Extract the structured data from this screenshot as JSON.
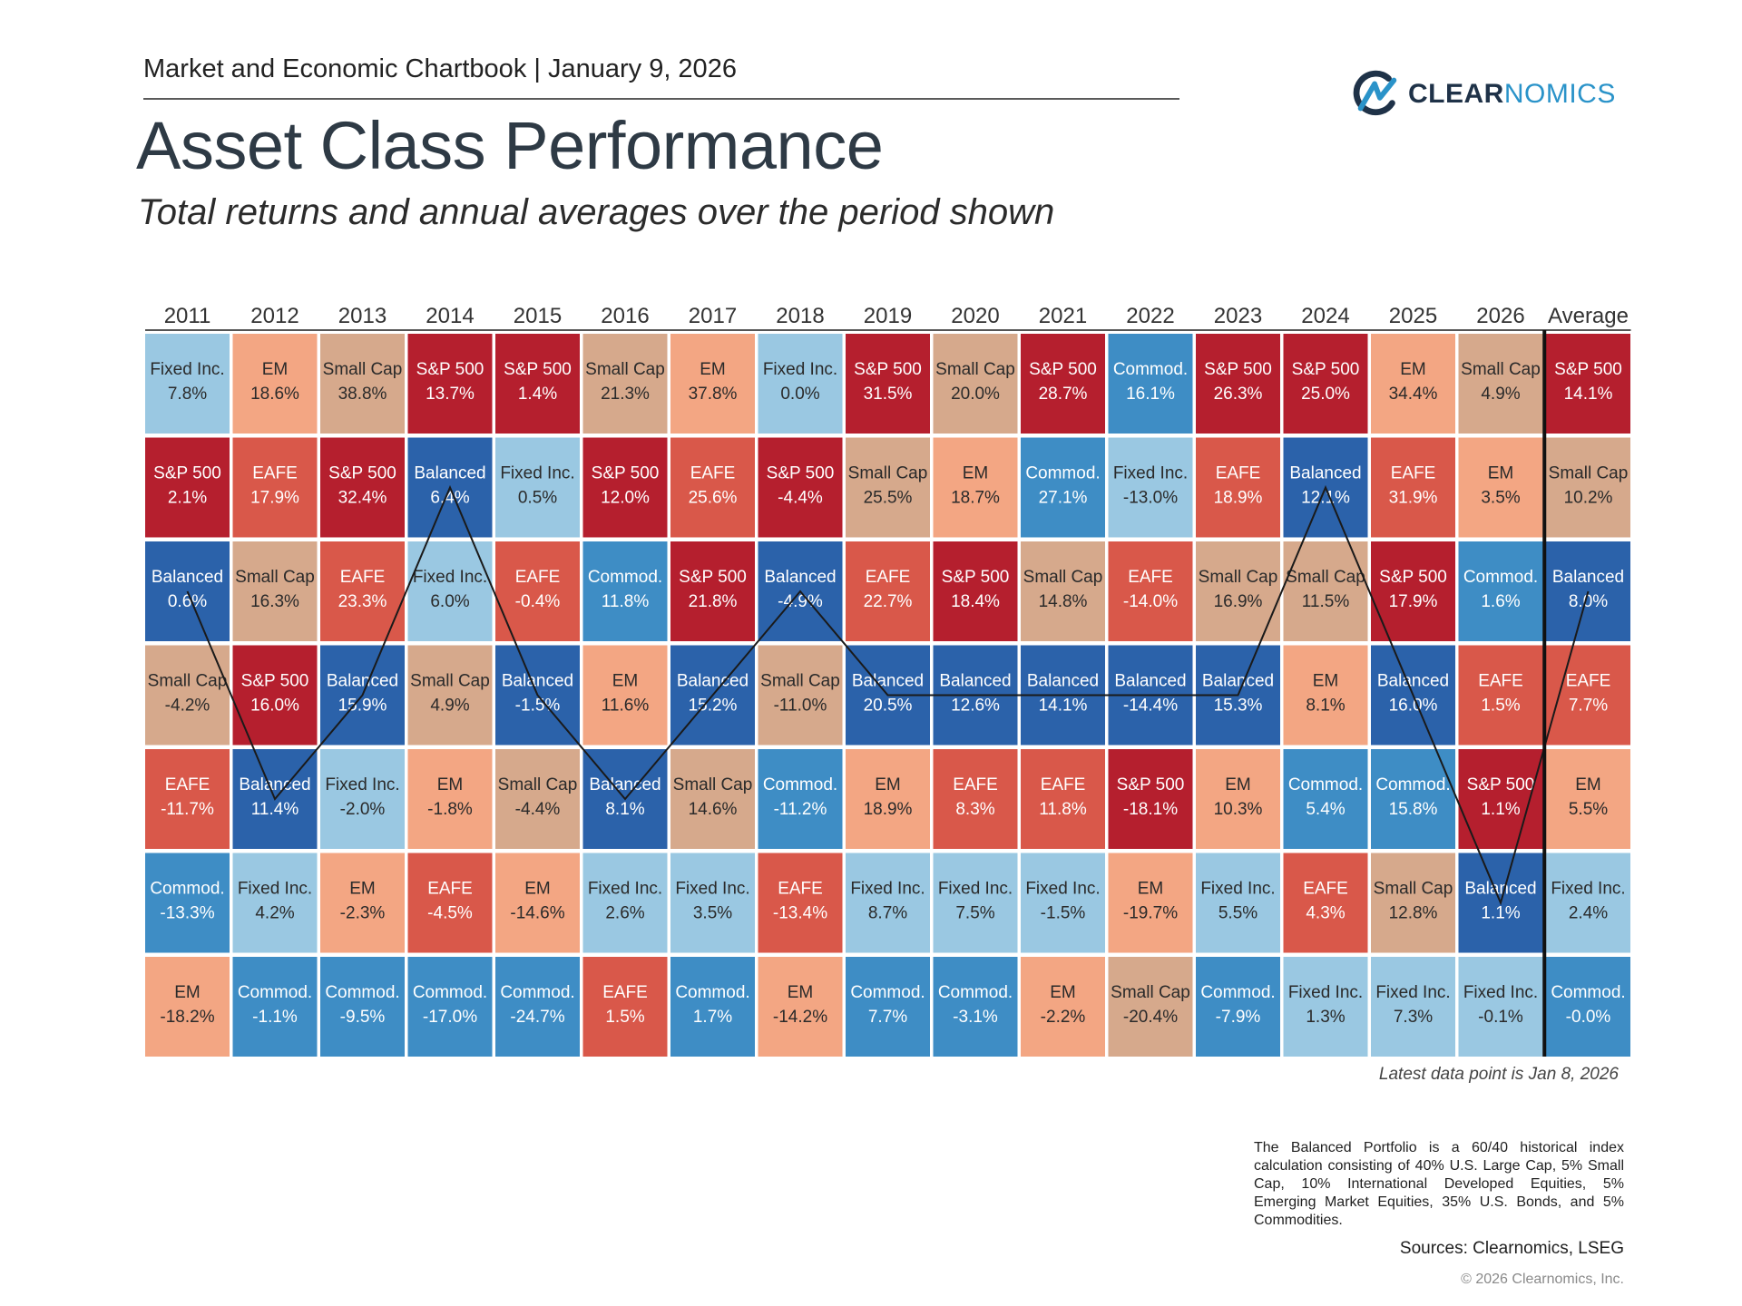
{
  "header": {
    "kicker": "Market and Economic Chartbook | January 9, 2026",
    "title": "Asset Class Performance",
    "subtitle": "Total returns and annual averages over the period shown"
  },
  "logo": {
    "text_bold": "CLEAR",
    "text_light": "NOMICS"
  },
  "legend_colors": {
    "S&P 500": "#b51f2e",
    "EAFE": "#d9584a",
    "EM": "#f3a683",
    "Small Cap": "#d6a98c",
    "Balanced": "#2b62aa",
    "Commod.": "#3e8dc5",
    "Fixed Inc.": "#9ac8e2"
  },
  "chart_data": {
    "type": "table",
    "title": "Asset Class Performance",
    "columns": [
      {
        "year": "2011",
        "cells": [
          [
            "Fixed Inc.",
            "7.8%"
          ],
          [
            "S&P 500",
            "2.1%"
          ],
          [
            "Balanced",
            "0.6%"
          ],
          [
            "Small Cap",
            "-4.2%"
          ],
          [
            "EAFE",
            "-11.7%"
          ],
          [
            "Commod.",
            "-13.3%"
          ],
          [
            "EM",
            "-18.2%"
          ]
        ]
      },
      {
        "year": "2012",
        "cells": [
          [
            "EM",
            "18.6%"
          ],
          [
            "EAFE",
            "17.9%"
          ],
          [
            "Small Cap",
            "16.3%"
          ],
          [
            "S&P 500",
            "16.0%"
          ],
          [
            "Balanced",
            "11.4%"
          ],
          [
            "Fixed Inc.",
            "4.2%"
          ],
          [
            "Commod.",
            "-1.1%"
          ]
        ]
      },
      {
        "year": "2013",
        "cells": [
          [
            "Small Cap",
            "38.8%"
          ],
          [
            "S&P 500",
            "32.4%"
          ],
          [
            "EAFE",
            "23.3%"
          ],
          [
            "Balanced",
            "15.9%"
          ],
          [
            "Fixed Inc.",
            "-2.0%"
          ],
          [
            "EM",
            "-2.3%"
          ],
          [
            "Commod.",
            "-9.5%"
          ]
        ]
      },
      {
        "year": "2014",
        "cells": [
          [
            "S&P 500",
            "13.7%"
          ],
          [
            "Balanced",
            "6.4%"
          ],
          [
            "Fixed Inc.",
            "6.0%"
          ],
          [
            "Small Cap",
            "4.9%"
          ],
          [
            "EM",
            "-1.8%"
          ],
          [
            "EAFE",
            "-4.5%"
          ],
          [
            "Commod.",
            "-17.0%"
          ]
        ]
      },
      {
        "year": "2015",
        "cells": [
          [
            "S&P 500",
            "1.4%"
          ],
          [
            "Fixed Inc.",
            "0.5%"
          ],
          [
            "EAFE",
            "-0.4%"
          ],
          [
            "Balanced",
            "-1.5%"
          ],
          [
            "Small Cap",
            "-4.4%"
          ],
          [
            "EM",
            "-14.6%"
          ],
          [
            "Commod.",
            "-24.7%"
          ]
        ]
      },
      {
        "year": "2016",
        "cells": [
          [
            "Small Cap",
            "21.3%"
          ],
          [
            "S&P 500",
            "12.0%"
          ],
          [
            "Commod.",
            "11.8%"
          ],
          [
            "EM",
            "11.6%"
          ],
          [
            "Balanced",
            "8.1%"
          ],
          [
            "Fixed Inc.",
            "2.6%"
          ],
          [
            "EAFE",
            "1.5%"
          ]
        ]
      },
      {
        "year": "2017",
        "cells": [
          [
            "EM",
            "37.8%"
          ],
          [
            "EAFE",
            "25.6%"
          ],
          [
            "S&P 500",
            "21.8%"
          ],
          [
            "Balanced",
            "15.2%"
          ],
          [
            "Small Cap",
            "14.6%"
          ],
          [
            "Fixed Inc.",
            "3.5%"
          ],
          [
            "Commod.",
            "1.7%"
          ]
        ]
      },
      {
        "year": "2018",
        "cells": [
          [
            "Fixed Inc.",
            "0.0%"
          ],
          [
            "S&P 500",
            "-4.4%"
          ],
          [
            "Balanced",
            "-4.9%"
          ],
          [
            "Small Cap",
            "-11.0%"
          ],
          [
            "Commod.",
            "-11.2%"
          ],
          [
            "EAFE",
            "-13.4%"
          ],
          [
            "EM",
            "-14.2%"
          ]
        ]
      },
      {
        "year": "2019",
        "cells": [
          [
            "S&P 500",
            "31.5%"
          ],
          [
            "Small Cap",
            "25.5%"
          ],
          [
            "EAFE",
            "22.7%"
          ],
          [
            "Balanced",
            "20.5%"
          ],
          [
            "EM",
            "18.9%"
          ],
          [
            "Fixed Inc.",
            "8.7%"
          ],
          [
            "Commod.",
            "7.7%"
          ]
        ]
      },
      {
        "year": "2020",
        "cells": [
          [
            "Small Cap",
            "20.0%"
          ],
          [
            "EM",
            "18.7%"
          ],
          [
            "S&P 500",
            "18.4%"
          ],
          [
            "Balanced",
            "12.6%"
          ],
          [
            "EAFE",
            "8.3%"
          ],
          [
            "Fixed Inc.",
            "7.5%"
          ],
          [
            "Commod.",
            "-3.1%"
          ]
        ]
      },
      {
        "year": "2021",
        "cells": [
          [
            "S&P 500",
            "28.7%"
          ],
          [
            "Commod.",
            "27.1%"
          ],
          [
            "Small Cap",
            "14.8%"
          ],
          [
            "Balanced",
            "14.1%"
          ],
          [
            "EAFE",
            "11.8%"
          ],
          [
            "Fixed Inc.",
            "-1.5%"
          ],
          [
            "EM",
            "-2.2%"
          ]
        ]
      },
      {
        "year": "2022",
        "cells": [
          [
            "Commod.",
            "16.1%"
          ],
          [
            "Fixed Inc.",
            "-13.0%"
          ],
          [
            "EAFE",
            "-14.0%"
          ],
          [
            "Balanced",
            "-14.4%"
          ],
          [
            "S&P 500",
            "-18.1%"
          ],
          [
            "EM",
            "-19.7%"
          ],
          [
            "Small Cap",
            "-20.4%"
          ]
        ]
      },
      {
        "year": "2023",
        "cells": [
          [
            "S&P 500",
            "26.3%"
          ],
          [
            "EAFE",
            "18.9%"
          ],
          [
            "Small Cap",
            "16.9%"
          ],
          [
            "Balanced",
            "15.3%"
          ],
          [
            "EM",
            "10.3%"
          ],
          [
            "Fixed Inc.",
            "5.5%"
          ],
          [
            "Commod.",
            "-7.9%"
          ]
        ]
      },
      {
        "year": "2024",
        "cells": [
          [
            "S&P 500",
            "25.0%"
          ],
          [
            "Balanced",
            "12.1%"
          ],
          [
            "Small Cap",
            "11.5%"
          ],
          [
            "EM",
            "8.1%"
          ],
          [
            "Commod.",
            "5.4%"
          ],
          [
            "EAFE",
            "4.3%"
          ],
          [
            "Fixed Inc.",
            "1.3%"
          ]
        ]
      },
      {
        "year": "2025",
        "cells": [
          [
            "EM",
            "34.4%"
          ],
          [
            "EAFE",
            "31.9%"
          ],
          [
            "S&P 500",
            "17.9%"
          ],
          [
            "Balanced",
            "16.0%"
          ],
          [
            "Commod.",
            "15.8%"
          ],
          [
            "Small Cap",
            "12.8%"
          ],
          [
            "Fixed Inc.",
            "7.3%"
          ]
        ]
      },
      {
        "year": "2026",
        "cells": [
          [
            "Small Cap",
            "4.9%"
          ],
          [
            "EM",
            "3.5%"
          ],
          [
            "Commod.",
            "1.6%"
          ],
          [
            "EAFE",
            "1.5%"
          ],
          [
            "S&P 500",
            "1.1%"
          ],
          [
            "Balanced",
            "1.1%"
          ],
          [
            "Fixed Inc.",
            "-0.1%"
          ]
        ]
      },
      {
        "year": "Average",
        "cells": [
          [
            "S&P 500",
            "14.1%"
          ],
          [
            "Small Cap",
            "10.2%"
          ],
          [
            "Balanced",
            "8.0%"
          ],
          [
            "EAFE",
            "7.7%"
          ],
          [
            "EM",
            "5.5%"
          ],
          [
            "Fixed Inc.",
            "2.4%"
          ],
          [
            "Commod.",
            "-0.0%"
          ]
        ]
      }
    ],
    "highlight_series": "Balanced"
  },
  "notes": {
    "latest": "Latest data point is Jan 8, 2026",
    "footnote": "The Balanced Portfolio is a 60/40 historical index calculation consisting of 40% U.S. Large Cap, 5% Small Cap, 10% International Developed Equities, 5% Emerging Market Equities, 35% U.S. Bonds, and 5% Commodities.",
    "sources": "Sources: Clearnomics, LSEG",
    "copyright": "© 2026 Clearnomics, Inc."
  }
}
